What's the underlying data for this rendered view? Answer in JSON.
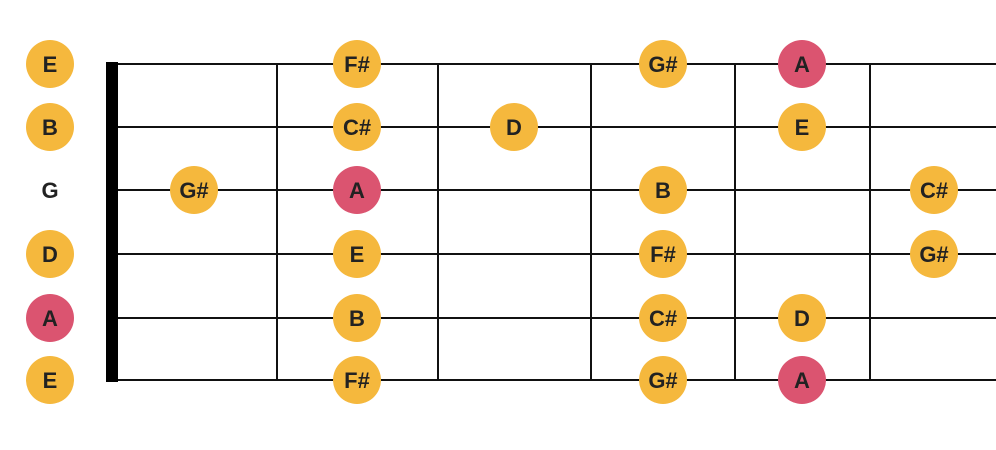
{
  "colors": {
    "note": "#F5B83D",
    "root": "#DB5470",
    "string": "#111111",
    "fret": "#111111",
    "nut": "#000000",
    "text": "#222222"
  },
  "open_strings": [
    {
      "label": "E",
      "style": "note"
    },
    {
      "label": "B",
      "style": "note"
    },
    {
      "label": "G",
      "style": "none"
    },
    {
      "label": "D",
      "style": "note"
    },
    {
      "label": "A",
      "style": "root"
    },
    {
      "label": "E",
      "style": "note"
    }
  ],
  "fret_count": 6,
  "notes": [
    {
      "string": 1,
      "fret": 2,
      "label": "F#",
      "style": "note"
    },
    {
      "string": 1,
      "fret": 4,
      "label": "G#",
      "style": "note"
    },
    {
      "string": 1,
      "fret": 5,
      "label": "A",
      "style": "root"
    },
    {
      "string": 2,
      "fret": 2,
      "label": "C#",
      "style": "note"
    },
    {
      "string": 2,
      "fret": 3,
      "label": "D",
      "style": "note"
    },
    {
      "string": 2,
      "fret": 5,
      "label": "E",
      "style": "note"
    },
    {
      "string": 3,
      "fret": 1,
      "label": "G#",
      "style": "note"
    },
    {
      "string": 3,
      "fret": 2,
      "label": "A",
      "style": "root"
    },
    {
      "string": 3,
      "fret": 4,
      "label": "B",
      "style": "note"
    },
    {
      "string": 3,
      "fret": 6,
      "label": "C#",
      "style": "note"
    },
    {
      "string": 4,
      "fret": 2,
      "label": "E",
      "style": "note"
    },
    {
      "string": 4,
      "fret": 4,
      "label": "F#",
      "style": "note"
    },
    {
      "string": 4,
      "fret": 6,
      "label": "G#",
      "style": "note"
    },
    {
      "string": 5,
      "fret": 2,
      "label": "B",
      "style": "note"
    },
    {
      "string": 5,
      "fret": 4,
      "label": "C#",
      "style": "note"
    },
    {
      "string": 5,
      "fret": 5,
      "label": "D",
      "style": "note"
    },
    {
      "string": 6,
      "fret": 2,
      "label": "F#",
      "style": "note"
    },
    {
      "string": 6,
      "fret": 4,
      "label": "G#",
      "style": "note"
    },
    {
      "string": 6,
      "fret": 5,
      "label": "A",
      "style": "root"
    }
  ]
}
